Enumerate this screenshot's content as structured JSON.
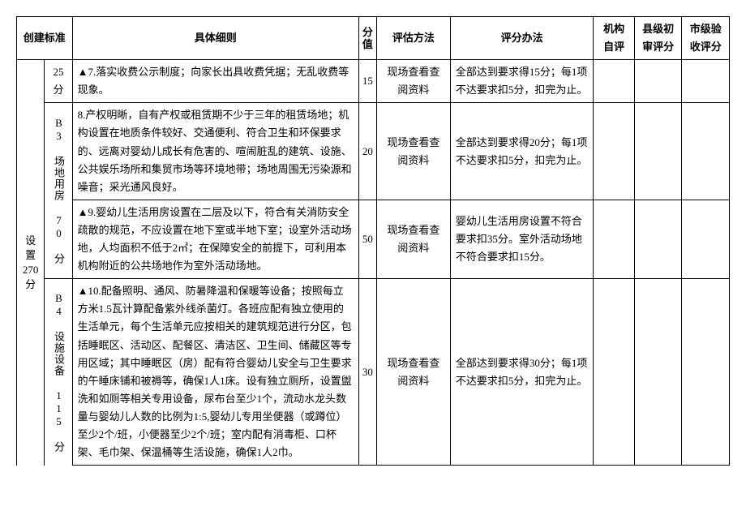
{
  "headers": {
    "standard": "创建标准",
    "detail": "具体细则",
    "score": "分值",
    "eval_method": "评估方法",
    "scoring_method": "评分办法",
    "self_eval": "机构自评",
    "county_eval": "县级初审评分",
    "city_eval": "市级验收评分"
  },
  "col1": {
    "setup": "设置",
    "setup_score": "270分"
  },
  "col2": {
    "b2_score": "25分",
    "b3_label": "B3 场地用房 70 分",
    "b4_label": "B4 设施设备 115 分"
  },
  "rows": [
    {
      "detail": "▲7.落实收费公示制度；向家长出具收费凭据；无乱收费等现象。",
      "score": "15",
      "eval_method": "现场查看查阅资料",
      "scoring": "全部达到要求得15分；每1项不达要求扣5分，扣完为止。"
    },
    {
      "detail": "8.产权明晰，自有产权或租赁期不少于三年的租赁场地；机构设置在地质条件较好、交通便利、符合卫生和环保要求的、远离对婴幼儿成长有危害的、喧闹脏乱的建筑、设施、公共娱乐场所和集贸市场等环境地带；场地周围无污染源和噪音；采光通风良好。",
      "score": "20",
      "eval_method": "现场查看查阅资料",
      "scoring": "全部达到要求得20分；每1项不达要求扣5分，扣完为止。"
    },
    {
      "detail": "▲9.婴幼儿生活用房设置在二层及以下，符合有关消防安全疏散的规范，不应设置在地下室或半地下室；设室外活动场地，人均面积不低于2㎡；在保障安全的前提下，可利用本机构附近的公共场地作为室外活动场地。",
      "score": "50",
      "eval_method": "现场查看查阅资料",
      "scoring": "婴幼儿生活用房设置不符合要求扣35分。室外活动场地不符合要求扣15分。"
    },
    {
      "detail": "▲10.配备照明、通风、防暑降温和保暖等设备；按照每立方米1.5瓦计算配备紫外线杀菌灯。各班应配有独立使用的生活单元，每个生活单元应按相关的建筑规范进行分区，包括睡眠区、活动区、配餐区、清洁区、卫生间、储藏区等专用区域；其中睡眠区（房）配有符合婴幼儿安全与卫生要求的午睡床铺和被褥等，确保1人1床。设有独立厕所，设置盥洗和如厕等相关专用设备，尿布台至少1个，流动水龙头数量与婴幼儿人数的比例为1:5,婴幼儿专用坐便器（或蹲位）至少2个/班，小便器至少2个/班；室内配有消毒柜、口杯架、毛巾架、保温桶等生活设施，确保1人2巾。",
      "score": "30",
      "eval_method": "现场查看查阅资料",
      "scoring": "全部达到要求得30分；每1项不达要求扣5分，扣完为止。"
    }
  ]
}
